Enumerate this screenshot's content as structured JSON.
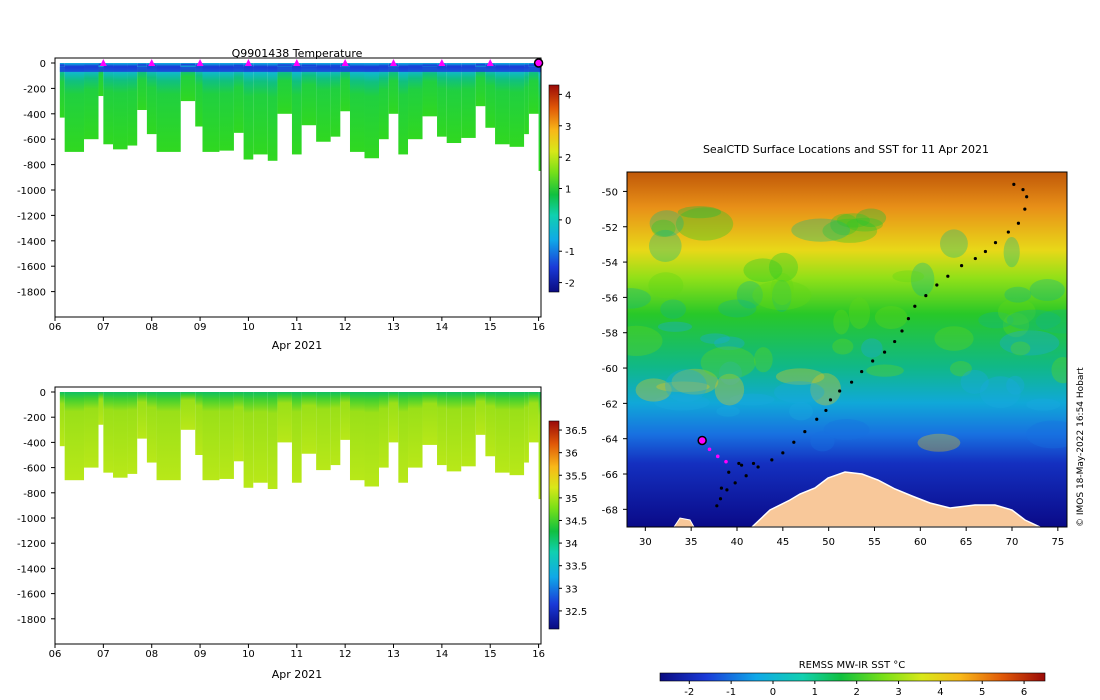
{
  "chart_data": [
    {
      "type": "heatmap",
      "title": "Q9901438  Temperature",
      "xlabel": "Apr 2021",
      "ylabel": "",
      "x_ticks": [
        "06",
        "07",
        "08",
        "09",
        "10",
        "11",
        "12",
        "13",
        "14",
        "15",
        "16"
      ],
      "x_range": [
        6,
        16.05
      ],
      "y_ticks": [
        0,
        -200,
        -400,
        -600,
        -800,
        -1000,
        -1200,
        -1400,
        -1600,
        -1800
      ],
      "y_range": [
        -2000,
        0
      ],
      "colorbar_ticks": [
        4,
        3,
        2,
        1,
        0,
        -1,
        -2
      ],
      "colorbar_range": [
        -2.3,
        4.3
      ],
      "markers": {
        "color": "#ff00ff",
        "x": [
          7,
          8,
          9,
          10,
          11,
          12,
          13,
          14,
          15
        ],
        "current_x": 16
      },
      "bottom_depth": [
        [
          6.1,
          -430
        ],
        [
          6.2,
          -700
        ],
        [
          6.6,
          -600
        ],
        [
          6.9,
          -260
        ],
        [
          7.0,
          -640
        ],
        [
          7.2,
          -680
        ],
        [
          7.5,
          -650
        ],
        [
          7.7,
          -370
        ],
        [
          7.9,
          -560
        ],
        [
          8.1,
          -700
        ],
        [
          8.6,
          -300
        ],
        [
          8.9,
          -500
        ],
        [
          9.05,
          -700
        ],
        [
          9.4,
          -690
        ],
        [
          9.7,
          -550
        ],
        [
          9.9,
          -760
        ],
        [
          10.1,
          -720
        ],
        [
          10.4,
          -770
        ],
        [
          10.6,
          -400
        ],
        [
          10.9,
          -720
        ],
        [
          11.1,
          -490
        ],
        [
          11.4,
          -620
        ],
        [
          11.7,
          -580
        ],
        [
          11.9,
          -380
        ],
        [
          12.1,
          -700
        ],
        [
          12.4,
          -750
        ],
        [
          12.7,
          -600
        ],
        [
          12.9,
          -400
        ],
        [
          13.1,
          -720
        ],
        [
          13.3,
          -600
        ],
        [
          13.6,
          -420
        ],
        [
          13.9,
          -580
        ],
        [
          14.1,
          -630
        ],
        [
          14.4,
          -590
        ],
        [
          14.7,
          -340
        ],
        [
          14.9,
          -510
        ],
        [
          15.1,
          -640
        ],
        [
          15.4,
          -660
        ],
        [
          15.7,
          -560
        ],
        [
          15.8,
          -400
        ],
        [
          16.0,
          -850
        ]
      ]
    },
    {
      "type": "heatmap",
      "title": "",
      "xlabel": "Apr 2021",
      "ylabel": "",
      "x_ticks": [
        "06",
        "07",
        "08",
        "09",
        "10",
        "11",
        "12",
        "13",
        "14",
        "15",
        "16"
      ],
      "x_range": [
        6,
        16.05
      ],
      "y_ticks": [
        0,
        -200,
        -400,
        -600,
        -800,
        -1000,
        -1200,
        -1400,
        -1600,
        -1800
      ],
      "y_range": [
        -2000,
        0
      ],
      "colorbar_ticks": [
        36.5,
        36,
        35.5,
        35,
        34.5,
        34,
        33.5,
        33,
        32.5
      ],
      "colorbar_range": [
        32.1,
        36.7
      ]
    },
    {
      "type": "heatmap",
      "title": "SealCTD Surface Locations and SST for 11 Apr 2021",
      "x_ticks": [
        30,
        35,
        40,
        45,
        50,
        55,
        60,
        65,
        70,
        75
      ],
      "x_range": [
        28,
        76
      ],
      "y_ticks": [
        -50,
        -52,
        -54,
        -56,
        -58,
        -60,
        -62,
        -64,
        -66,
        -68
      ],
      "y_range": [
        -69,
        -48.9
      ],
      "colorbar_label": "REMSS MW-IR SST °C",
      "colorbar_ticks": [
        -2,
        -1,
        0,
        1,
        2,
        3,
        4,
        5,
        6
      ],
      "colorbar_range": [
        -2.7,
        6.5
      ],
      "current_position": [
        36.2,
        -64.1
      ],
      "track": [
        [
          70.2,
          -49.6
        ],
        [
          71.2,
          -49.9
        ],
        [
          71.6,
          -50.3
        ],
        [
          71.4,
          -51.0
        ],
        [
          70.7,
          -51.8
        ],
        [
          69.6,
          -52.3
        ],
        [
          68.2,
          -52.9
        ],
        [
          67.1,
          -53.4
        ],
        [
          66.0,
          -53.8
        ],
        [
          64.5,
          -54.2
        ],
        [
          63.0,
          -54.8
        ],
        [
          61.8,
          -55.3
        ],
        [
          60.6,
          -55.9
        ],
        [
          59.4,
          -56.5
        ],
        [
          58.7,
          -57.2
        ],
        [
          58.0,
          -57.9
        ],
        [
          57.2,
          -58.5
        ],
        [
          56.1,
          -59.1
        ],
        [
          54.8,
          -59.6
        ],
        [
          53.6,
          -60.2
        ],
        [
          52.5,
          -60.8
        ],
        [
          51.2,
          -61.3
        ],
        [
          50.2,
          -61.8
        ],
        [
          49.7,
          -62.4
        ],
        [
          48.7,
          -62.9
        ],
        [
          47.4,
          -63.6
        ],
        [
          46.2,
          -64.2
        ],
        [
          45.0,
          -64.8
        ],
        [
          43.8,
          -65.2
        ],
        [
          42.3,
          -65.6
        ],
        [
          41.0,
          -66.1
        ],
        [
          39.8,
          -66.5
        ],
        [
          38.9,
          -66.9
        ],
        [
          38.2,
          -67.4
        ],
        [
          37.8,
          -67.8
        ],
        [
          38.3,
          -66.8
        ],
        [
          39.1,
          -65.9
        ],
        [
          40.5,
          -65.5
        ],
        [
          41.8,
          -65.4
        ],
        [
          40.2,
          -65.4
        ],
        [
          38.8,
          -65.3
        ]
      ],
      "recent_track": [
        [
          36.2,
          -64.1
        ],
        [
          37.0,
          -64.6
        ],
        [
          37.9,
          -65.0
        ],
        [
          38.8,
          -65.3
        ]
      ]
    }
  ],
  "side_label": "© IMOS 18-May-2022 16:54 Hobart"
}
